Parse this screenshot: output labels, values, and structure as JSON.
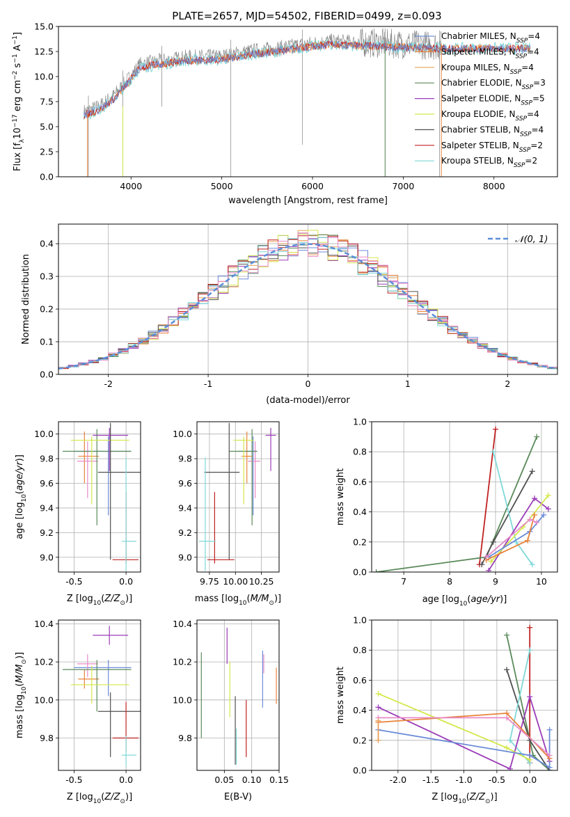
{
  "figure": {
    "title": "PLATE=2657, MJD=54502, FIBERID=0499, z=0.093",
    "colors": {
      "Chabrier MILES": "#6b8bd8",
      "Salpeter MILES": "#e8833a",
      "Kroupa MILES": "#e8a05a",
      "Chabrier ELODIE": "#5a8a5a",
      "Salpeter ELODIE": "#9b3cb8",
      "Kroupa ELODIE": "#d4e84a",
      "Chabrier STELIB": "#505050",
      "Salpeter STELIB": "#c02020",
      "Kroupa STELIB": "#7fd8d8",
      "Pink": "#e88ac8"
    }
  },
  "chart_data": [
    {
      "id": "spectrum",
      "type": "line",
      "title": "PLATE=2657, MJD=54502, FIBERID=0499, z=0.093",
      "xlabel": "wavelength [Angstrom, rest frame]",
      "ylabel": "Flux [f_λ 10^-17 erg cm^-2 s^-1 A^-1]",
      "xlim": [
        3200,
        8700
      ],
      "ylim": [
        0,
        15
      ],
      "xticks": [
        4000,
        5000,
        6000,
        7000,
        8000
      ],
      "yticks": [
        0.0,
        2.5,
        5.0,
        7.5,
        10.0,
        12.5,
        15.0
      ],
      "legend_position": "right",
      "legend": [
        {
          "label": "Chabrier MILES, N",
          "sub": "SSP",
          "val": "=4",
          "color": "#6b8bd8"
        },
        {
          "label": "Salpeter MILES, N",
          "sub": "SSP",
          "val": "=4",
          "color": "#e8833a"
        },
        {
          "label": "Kroupa MILES, N",
          "sub": "SSP",
          "val": "=4",
          "color": "#e8a05a"
        },
        {
          "label": "Chabrier ELODIE, N",
          "sub": "SSP",
          "val": "=3",
          "color": "#5a8a5a"
        },
        {
          "label": "Salpeter ELODIE, N",
          "sub": "SSP",
          "val": "=5",
          "color": "#9b3cb8"
        },
        {
          "label": "Kroupa ELODIE, N",
          "sub": "SSP",
          "val": "=4",
          "color": "#d4e84a"
        },
        {
          "label": "Chabrier STELIB, N",
          "sub": "SSP",
          "val": "=4",
          "color": "#505050"
        },
        {
          "label": "Salpeter STELIB, N",
          "sub": "SSP",
          "val": "=2",
          "color": "#c02020"
        },
        {
          "label": "Kroupa STELIB, N",
          "sub": "SSP",
          "val": "=2",
          "color": "#7fd8d8"
        }
      ],
      "continuum_x": [
        3500,
        3650,
        3800,
        3950,
        4100,
        4300,
        4600,
        5000,
        5300,
        5600,
        5900,
        6200,
        6500,
        6800,
        7100,
        7400
      ],
      "continuum_y": [
        6.5,
        7.0,
        8.0,
        9.5,
        11.2,
        11.5,
        11.9,
        12.0,
        12.5,
        12.8,
        13.2,
        13.5,
        13.4,
        13.3,
        13.2,
        13.1
      ],
      "dips": [
        {
          "x": 3530,
          "y": 0.0
        },
        {
          "x": 3910,
          "y": 0.2
        },
        {
          "x": 4340,
          "y": 7.0
        },
        {
          "x": 5100,
          "y": 0.0
        },
        {
          "x": 5890,
          "y": 3.2
        },
        {
          "x": 6800,
          "y": 0.0
        },
        {
          "x": 7400,
          "y": 0.0
        }
      ]
    },
    {
      "id": "residuals",
      "type": "line",
      "xlabel": "(data-model)/error",
      "ylabel": "Normed distribution",
      "xlim": [
        -2.5,
        2.5
      ],
      "ylim": [
        0,
        0.46
      ],
      "xticks": [
        -2,
        -1,
        0,
        1,
        2
      ],
      "yticks": [
        0.0,
        0.1,
        0.2,
        0.3,
        0.4
      ],
      "legend": "𝒩(0, 1)",
      "legend_position": "top-right",
      "grid": true
    },
    {
      "id": "age_vs_Z",
      "type": "scatter",
      "xlabel": "Z [log10(Z/Z⊙)]",
      "ylabel": "age [log10(age/yr)]",
      "xlim": [
        -0.65,
        0.14
      ],
      "ylim": [
        8.88,
        10.1
      ],
      "xticks": [
        -0.5,
        0.0
      ],
      "yticks": [
        9.0,
        9.2,
        9.4,
        9.6,
        9.8,
        10.0
      ],
      "grid": true,
      "points": [
        {
          "x": -0.17,
          "y": 9.86,
          "xerr": [
            0.33,
            0.22
          ],
          "yerr": [
            0.52,
            0.12
          ],
          "color": "#6b8bd8"
        },
        {
          "x": -0.4,
          "y": 9.82,
          "xerr": [
            0.06,
            0.14
          ],
          "yerr": [
            0.22,
            0.2
          ],
          "color": "#e8833a"
        },
        {
          "x": -0.37,
          "y": 9.78,
          "xerr": [
            0.1,
            0.1
          ],
          "yerr": [
            0.3,
            0.16
          ],
          "color": "#e88ac8"
        },
        {
          "x": -0.28,
          "y": 9.86,
          "xerr": [
            0.33,
            0.33
          ],
          "yerr": [
            0.6,
            0.18
          ],
          "color": "#5a8a5a"
        },
        {
          "x": -0.16,
          "y": 9.99,
          "xerr": [
            0.16,
            0.18
          ],
          "yerr": [
            0.29,
            0.06
          ],
          "color": "#9b3cb8"
        },
        {
          "x": -0.33,
          "y": 9.95,
          "xerr": [
            0.2,
            0.36
          ],
          "yerr": [
            0.52,
            0.03
          ],
          "color": "#d4e84a"
        },
        {
          "x": -0.15,
          "y": 9.69,
          "xerr": [
            0.12,
            0.29
          ],
          "yerr": [
            0.71,
            0.4
          ],
          "color": "#505050"
        },
        {
          "x": 0.0,
          "y": 8.98,
          "xerr": [
            0.13,
            0.12
          ],
          "yerr": [
            0.03,
            0.55
          ],
          "color": "#c02020"
        },
        {
          "x": 0.0,
          "y": 9.13,
          "xerr": [
            0.04,
            0.1
          ],
          "yerr": [
            0.24,
            0.68
          ],
          "color": "#7fd8d8"
        }
      ]
    },
    {
      "id": "age_vs_mass",
      "type": "scatter",
      "xlabel": "mass [log10(M/M⊙)]",
      "ylabel": "",
      "xlim": [
        9.63,
        10.42
      ],
      "ylim": [
        8.88,
        10.1
      ],
      "xticks": [
        9.75,
        10.0,
        10.25
      ],
      "yticks": [
        9.0,
        9.2,
        9.4,
        9.6,
        9.8,
        10.0
      ],
      "grid": true,
      "points": [
        {
          "x": 10.17,
          "y": 9.86,
          "xerr": [
            0.15,
            0.04
          ],
          "yerr": [
            0.52,
            0.12
          ],
          "color": "#6b8bd8"
        },
        {
          "x": 10.11,
          "y": 9.82,
          "xerr": [
            0.05,
            0.05
          ],
          "yerr": [
            0.22,
            0.2
          ],
          "color": "#e8833a"
        },
        {
          "x": 10.19,
          "y": 9.78,
          "xerr": [
            0.07,
            0.05
          ],
          "yerr": [
            0.3,
            0.16
          ],
          "color": "#e88ac8"
        },
        {
          "x": 10.16,
          "y": 9.86,
          "xerr": [
            0.22,
            0.05
          ],
          "yerr": [
            0.6,
            0.18
          ],
          "color": "#5a8a5a"
        },
        {
          "x": 10.34,
          "y": 9.99,
          "xerr": [
            0.05,
            0.05
          ],
          "yerr": [
            0.29,
            0.06
          ],
          "color": "#9b3cb8"
        },
        {
          "x": 10.08,
          "y": 9.95,
          "xerr": [
            0.1,
            0.1
          ],
          "yerr": [
            0.52,
            0.03
          ],
          "color": "#d4e84a"
        },
        {
          "x": 9.94,
          "y": 9.69,
          "xerr": [
            0.24,
            0.1
          ],
          "yerr": [
            0.71,
            0.4
          ],
          "color": "#505050"
        },
        {
          "x": 9.8,
          "y": 8.98,
          "xerr": [
            0.07,
            0.19
          ],
          "yerr": [
            0.03,
            0.55
          ],
          "color": "#c02020"
        },
        {
          "x": 9.71,
          "y": 9.13,
          "xerr": [
            0.06,
            0.1
          ],
          "yerr": [
            0.24,
            0.68
          ],
          "color": "#7fd8d8"
        }
      ]
    },
    {
      "id": "massweight_vs_age",
      "type": "line",
      "xlabel": "age [log10(age/yr)]",
      "ylabel": "mass weight",
      "xlim": [
        6.3,
        10.35
      ],
      "ylim": [
        0,
        1.0
      ],
      "xticks": [
        7,
        8,
        9,
        10
      ],
      "yticks": [
        0.0,
        0.2,
        0.4,
        0.6,
        0.8,
        1.0
      ],
      "grid": true,
      "series": [
        {
          "color": "#c02020",
          "x": [
            8.65,
            9.0
          ],
          "y": [
            0.05,
            0.95
          ]
        },
        {
          "color": "#5a8a5a",
          "x": [
            6.4,
            8.8,
            9.9
          ],
          "y": [
            0.0,
            0.1,
            0.9
          ]
        },
        {
          "color": "#505050",
          "x": [
            8.7,
            8.95,
            9.8
          ],
          "y": [
            0.05,
            0.2,
            0.67
          ]
        },
        {
          "color": "#7fd8d8",
          "x": [
            8.95,
            9.45,
            9.8
          ],
          "y": [
            0.8,
            0.2,
            0.05
          ]
        },
        {
          "color": "#9b3cb8",
          "x": [
            8.85,
            9.85,
            10.15
          ],
          "y": [
            0.01,
            0.49,
            0.42
          ]
        },
        {
          "color": "#d4e84a",
          "x": [
            8.9,
            9.6,
            10.15
          ],
          "y": [
            0.07,
            0.3,
            0.51
          ]
        },
        {
          "color": "#6b8bd8",
          "x": [
            8.85,
            9.75,
            10.05
          ],
          "y": [
            0.1,
            0.27,
            0.38
          ]
        },
        {
          "color": "#e8833a",
          "x": [
            8.8,
            9.7,
            9.85
          ],
          "y": [
            0.08,
            0.21,
            0.38
          ]
        },
        {
          "color": "#e88ac8",
          "x": [
            8.8,
            9.75,
            9.9
          ],
          "y": [
            0.1,
            0.35,
            0.33
          ]
        }
      ]
    },
    {
      "id": "mass_vs_Z",
      "type": "scatter",
      "xlabel": "Z [log10(Z/Z⊙)]",
      "ylabel": "mass [log10(M/M⊙)]",
      "xlim": [
        -0.65,
        0.14
      ],
      "ylim": [
        9.63,
        10.42
      ],
      "xticks": [
        -0.5,
        0.0
      ],
      "yticks": [
        9.8,
        10.0,
        10.2,
        10.4
      ],
      "grid": true,
      "points": [
        {
          "x": -0.17,
          "y": 10.17,
          "xerr": [
            0.33,
            0.22
          ],
          "yerr": [
            0.15,
            0.04
          ],
          "color": "#6b8bd8"
        },
        {
          "x": -0.4,
          "y": 10.11,
          "xerr": [
            0.06,
            0.14
          ],
          "yerr": [
            0.05,
            0.05
          ],
          "color": "#e8833a"
        },
        {
          "x": -0.37,
          "y": 10.19,
          "xerr": [
            0.1,
            0.1
          ],
          "yerr": [
            0.07,
            0.05
          ],
          "color": "#e88ac8"
        },
        {
          "x": -0.28,
          "y": 10.16,
          "xerr": [
            0.33,
            0.33
          ],
          "yerr": [
            0.22,
            0.05
          ],
          "color": "#5a8a5a"
        },
        {
          "x": -0.16,
          "y": 10.34,
          "xerr": [
            0.16,
            0.18
          ],
          "yerr": [
            0.05,
            0.05
          ],
          "color": "#9b3cb8"
        },
        {
          "x": -0.33,
          "y": 10.08,
          "xerr": [
            0.2,
            0.36
          ],
          "yerr": [
            0.1,
            0.1
          ],
          "color": "#d4e84a"
        },
        {
          "x": -0.15,
          "y": 9.94,
          "xerr": [
            0.12,
            0.29
          ],
          "yerr": [
            0.24,
            0.1
          ],
          "color": "#505050"
        },
        {
          "x": 0.0,
          "y": 9.8,
          "xerr": [
            0.13,
            0.12
          ],
          "yerr": [
            0.07,
            0.19
          ],
          "color": "#c02020"
        },
        {
          "x": 0.0,
          "y": 9.71,
          "xerr": [
            0.04,
            0.1
          ],
          "yerr": [
            0.06,
            0.1
          ],
          "color": "#7fd8d8"
        }
      ]
    },
    {
      "id": "mass_vs_ebv",
      "type": "scatter",
      "xlabel": "E(B-V)",
      "ylabel": "",
      "xlim": [
        0.0,
        0.15
      ],
      "ylim": [
        9.63,
        10.42
      ],
      "xticks": [
        0.05,
        0.1,
        0.15
      ],
      "yticks": [
        9.8,
        10.0,
        10.2,
        10.4
      ],
      "grid": true,
      "points": [
        {
          "x": 0.12,
          "y": 10.17,
          "xerr": [
            0,
            0
          ],
          "yerr": [
            0.21,
            0.09
          ],
          "color": "#6b8bd8"
        },
        {
          "x": 0.145,
          "y": 10.11,
          "xerr": [
            0,
            0
          ],
          "yerr": [
            0.13,
            0.06
          ],
          "color": "#e8833a"
        },
        {
          "x": 0.122,
          "y": 10.19,
          "xerr": [
            0,
            0
          ],
          "yerr": [
            0.05,
            0.05
          ],
          "color": "#e88ac8"
        },
        {
          "x": 0.008,
          "y": 10.16,
          "xerr": [
            0,
            0
          ],
          "yerr": [
            0.36,
            0.09
          ],
          "color": "#5a8a5a"
        },
        {
          "x": 0.055,
          "y": 10.34,
          "xerr": [
            0,
            0
          ],
          "yerr": [
            0.15,
            0.04
          ],
          "color": "#9b3cb8"
        },
        {
          "x": 0.06,
          "y": 10.08,
          "xerr": [
            0,
            0
          ],
          "yerr": [
            0.17,
            0.12
          ],
          "color": "#d4e84a"
        },
        {
          "x": 0.07,
          "y": 9.94,
          "xerr": [
            0,
            0
          ],
          "yerr": [
            0.28,
            0.08
          ],
          "color": "#505050"
        },
        {
          "x": 0.09,
          "y": 9.8,
          "xerr": [
            0,
            0
          ],
          "yerr": [
            0.1,
            0.2
          ],
          "color": "#c02020"
        },
        {
          "x": 0.072,
          "y": 9.71,
          "xerr": [
            0,
            0
          ],
          "yerr": [
            0.05,
            0.14
          ],
          "color": "#7fd8d8"
        }
      ]
    },
    {
      "id": "massweight_vs_Z",
      "type": "line",
      "xlabel": "Z [log10(Z/Z⊙)]",
      "ylabel": "mass weight",
      "xlim": [
        -2.4,
        0.42
      ],
      "ylim": [
        0,
        1.0
      ],
      "xticks": [
        -2.0,
        -1.5,
        -1.0,
        -0.5,
        0.0
      ],
      "yticks": [
        0.0,
        0.2,
        0.4,
        0.6,
        0.8,
        1.0
      ],
      "grid": true,
      "series": [
        {
          "color": "#c02020",
          "x": [
            0.0,
            0.0,
            0.0
          ],
          "y": [
            0.95,
            0.05,
            0.05
          ]
        },
        {
          "color": "#5a8a5a",
          "x": [
            -0.35,
            0.05,
            0.3
          ],
          "y": [
            0.9,
            0.1,
            0.0
          ]
        },
        {
          "color": "#505050",
          "x": [
            -0.35,
            0.0,
            0.3
          ],
          "y": [
            0.67,
            0.2,
            0.0
          ]
        },
        {
          "color": "#7fd8d8",
          "x": [
            0.0,
            -0.3,
            0.0
          ],
          "y": [
            0.8,
            0.2,
            0.05
          ]
        },
        {
          "color": "#9b3cb8",
          "x": [
            -2.3,
            -0.3,
            0.0,
            0.3
          ],
          "y": [
            0.42,
            0.01,
            0.49,
            0.06
          ]
        },
        {
          "color": "#d4e84a",
          "x": [
            -2.3,
            -0.35,
            0.0
          ],
          "y": [
            0.51,
            0.15,
            0.07
          ]
        },
        {
          "color": "#6b8bd8",
          "x": [
            -2.3,
            0.0,
            0.3,
            0.3
          ],
          "y": [
            0.27,
            0.1,
            0.02,
            0.27
          ]
        },
        {
          "color": "#e8833a",
          "x": [
            -2.3,
            -0.35,
            0.3
          ],
          "y": [
            0.32,
            0.38,
            0.08
          ]
        },
        {
          "color": "#e88ac8",
          "x": [
            -2.3,
            -0.35,
            0.3
          ],
          "y": [
            0.35,
            0.35,
            0.1
          ]
        },
        {
          "color": "#e8a05a",
          "x": [
            -2.3,
            -2.3
          ],
          "y": [
            0.2,
            0.33
          ]
        }
      ]
    }
  ]
}
